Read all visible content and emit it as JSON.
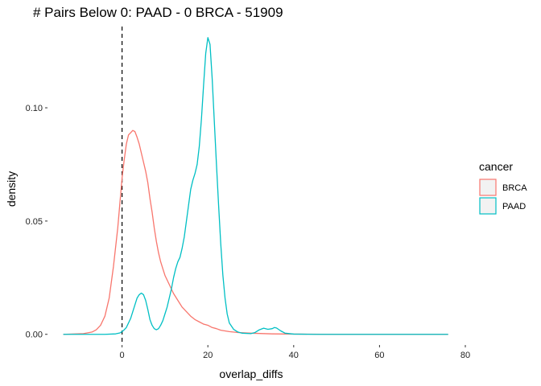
{
  "chart_data": {
    "type": "line",
    "title": "# Pairs Below 0: PAAD - 0 BRCA - 51909",
    "xlabel": "overlap_diffs",
    "ylabel": "density",
    "xlim": [
      -17,
      80
    ],
    "ylim": [
      -0.004,
      0.138
    ],
    "x_ticks": [
      0,
      20,
      40,
      60,
      80
    ],
    "y_ticks": [
      0.0,
      0.05,
      0.1
    ],
    "x_tick_labels": [
      "0",
      "20",
      "40",
      "60",
      "80"
    ],
    "y_tick_labels": [
      "0.00",
      "0.05",
      "0.10"
    ],
    "vline": {
      "x": 0,
      "style": "dashed",
      "color": "#000000"
    },
    "grid": false,
    "legend": {
      "title": "cancer",
      "position": "right",
      "entries": [
        {
          "label": "BRCA",
          "color": "#F8766D"
        },
        {
          "label": "PAAD",
          "color": "#00BFC4"
        }
      ]
    },
    "series": [
      {
        "name": "BRCA",
        "color": "#F8766D",
        "points": [
          [
            -13.7,
            0.0
          ],
          [
            -9,
            0.0003
          ],
          [
            -7,
            0.001
          ],
          [
            -6,
            0.002
          ],
          [
            -5,
            0.004
          ],
          [
            -4,
            0.008
          ],
          [
            -3,
            0.016
          ],
          [
            -2,
            0.03
          ],
          [
            -1,
            0.047
          ],
          [
            0,
            0.069
          ],
          [
            0.5,
            0.077
          ],
          [
            1,
            0.084
          ],
          [
            1.5,
            0.088
          ],
          [
            2,
            0.089
          ],
          [
            2.5,
            0.09
          ],
          [
            3,
            0.0895
          ],
          [
            3.5,
            0.087
          ],
          [
            4,
            0.084
          ],
          [
            4.5,
            0.08
          ],
          [
            5,
            0.076
          ],
          [
            5.5,
            0.072
          ],
          [
            6,
            0.067
          ],
          [
            6.5,
            0.06
          ],
          [
            7,
            0.054
          ],
          [
            7.5,
            0.047
          ],
          [
            8,
            0.041
          ],
          [
            8.5,
            0.036
          ],
          [
            9,
            0.032
          ],
          [
            9.5,
            0.029
          ],
          [
            10,
            0.026
          ],
          [
            11,
            0.022
          ],
          [
            12,
            0.018
          ],
          [
            13,
            0.015
          ],
          [
            14,
            0.012
          ],
          [
            15,
            0.01
          ],
          [
            16,
            0.008
          ],
          [
            17,
            0.0065
          ],
          [
            18,
            0.0055
          ],
          [
            19,
            0.0045
          ],
          [
            20,
            0.004
          ],
          [
            21,
            0.003
          ],
          [
            22,
            0.0025
          ],
          [
            23,
            0.0018
          ],
          [
            25,
            0.0012
          ],
          [
            27,
            0.0008
          ],
          [
            30,
            0.0005
          ],
          [
            35,
            0.0002
          ],
          [
            40,
            0.0001
          ],
          [
            50,
            0.0
          ],
          [
            76,
            0.0
          ]
        ]
      },
      {
        "name": "PAAD",
        "color": "#00BFC4",
        "points": [
          [
            -13.7,
            0.0
          ],
          [
            -4,
            0.0
          ],
          [
            -1.5,
            0.0002
          ],
          [
            -0.5,
            0.0006
          ],
          [
            0,
            0.0012
          ],
          [
            0.5,
            0.002
          ],
          [
            1,
            0.003
          ],
          [
            1.5,
            0.005
          ],
          [
            2,
            0.007
          ],
          [
            2.5,
            0.01
          ],
          [
            3,
            0.013
          ],
          [
            3.5,
            0.016
          ],
          [
            4,
            0.0175
          ],
          [
            4.5,
            0.0182
          ],
          [
            5,
            0.0175
          ],
          [
            5.5,
            0.015
          ],
          [
            6,
            0.011
          ],
          [
            6.5,
            0.0065
          ],
          [
            7,
            0.004
          ],
          [
            7.5,
            0.0025
          ],
          [
            8,
            0.002
          ],
          [
            8.5,
            0.0025
          ],
          [
            9,
            0.004
          ],
          [
            9.5,
            0.006
          ],
          [
            10,
            0.009
          ],
          [
            10.5,
            0.012
          ],
          [
            11,
            0.016
          ],
          [
            11.5,
            0.02
          ],
          [
            12,
            0.025
          ],
          [
            12.5,
            0.029
          ],
          [
            13,
            0.032
          ],
          [
            13.5,
            0.034
          ],
          [
            14,
            0.038
          ],
          [
            14.5,
            0.043
          ],
          [
            15,
            0.05
          ],
          [
            15.5,
            0.057
          ],
          [
            16,
            0.064
          ],
          [
            16.5,
            0.068
          ],
          [
            17,
            0.071
          ],
          [
            17.5,
            0.075
          ],
          [
            18,
            0.083
          ],
          [
            18.5,
            0.095
          ],
          [
            19,
            0.11
          ],
          [
            19.5,
            0.124
          ],
          [
            20,
            0.131
          ],
          [
            20.5,
            0.128
          ],
          [
            21,
            0.113
          ],
          [
            21.5,
            0.094
          ],
          [
            22,
            0.075
          ],
          [
            22.5,
            0.057
          ],
          [
            23,
            0.04
          ],
          [
            23.5,
            0.026
          ],
          [
            24,
            0.016
          ],
          [
            24.5,
            0.009
          ],
          [
            25,
            0.005
          ],
          [
            26,
            0.0022
          ],
          [
            27,
            0.001
          ],
          [
            28,
            0.0005
          ],
          [
            30,
            0.0003
          ],
          [
            31,
            0.0008
          ],
          [
            32,
            0.002
          ],
          [
            33,
            0.0027
          ],
          [
            34,
            0.0022
          ],
          [
            35,
            0.0025
          ],
          [
            35.5,
            0.003
          ],
          [
            36,
            0.0028
          ],
          [
            37,
            0.0015
          ],
          [
            38,
            0.0005
          ],
          [
            40,
            0.0001
          ],
          [
            45,
            0.0
          ],
          [
            76,
            0.0
          ]
        ]
      }
    ]
  }
}
